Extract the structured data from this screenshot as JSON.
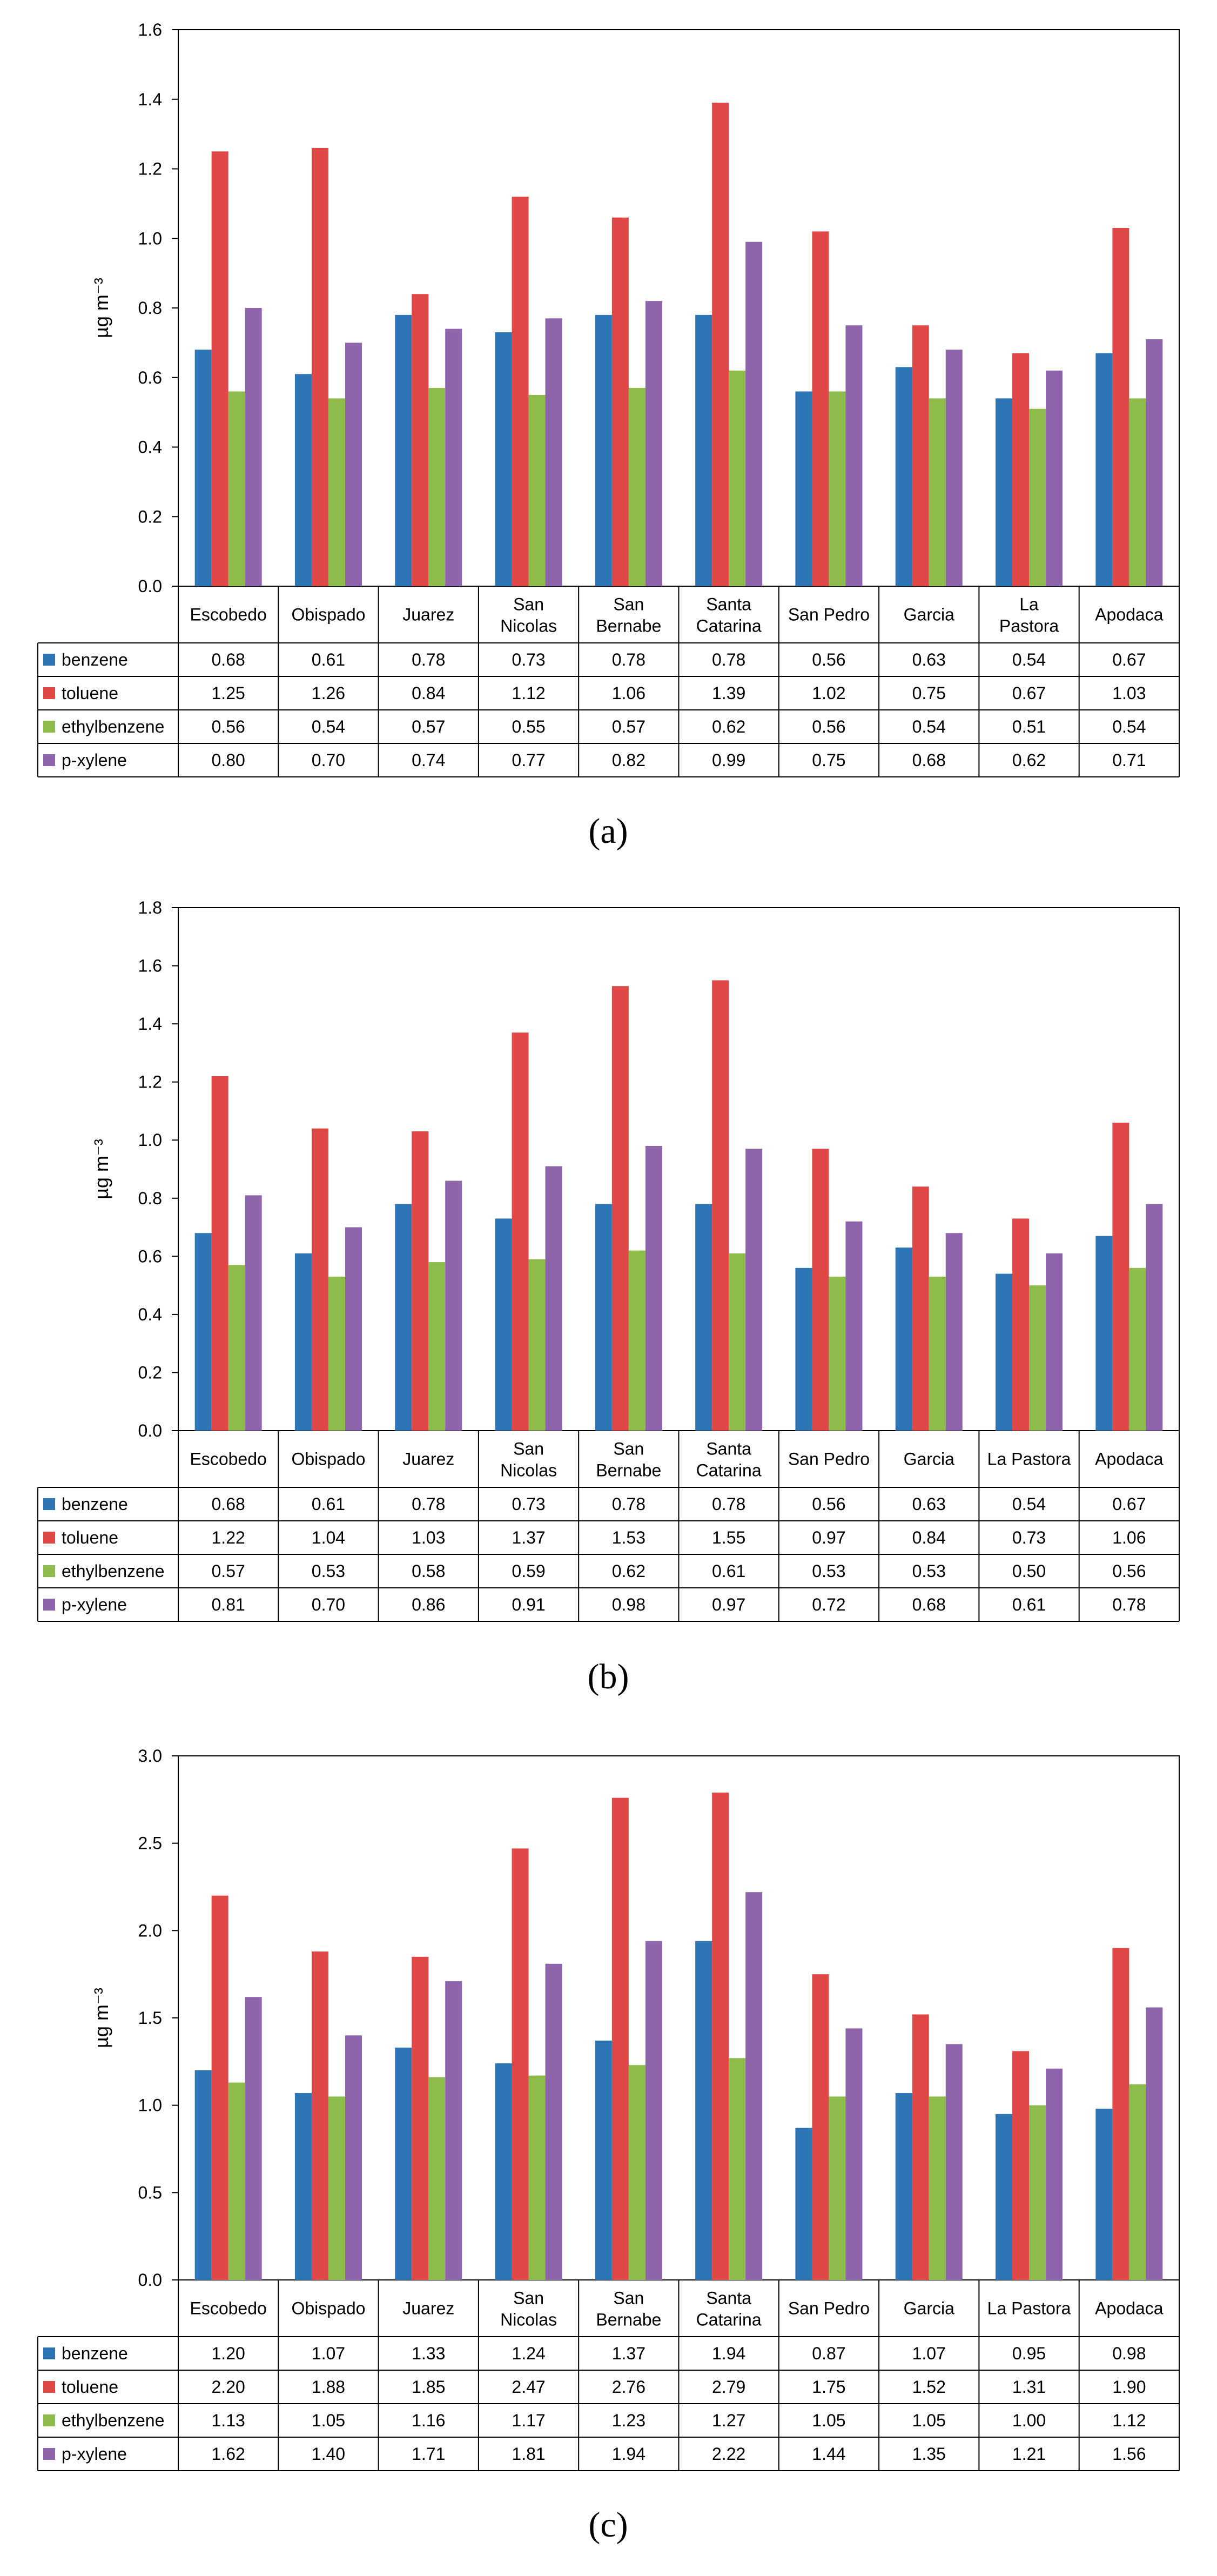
{
  "colors": {
    "benzene": "#2E75B6",
    "toluene": "#E04848",
    "ethylbenzene": "#8DBB4C",
    "p_xylene": "#8E64AA"
  },
  "chart_data": [
    {
      "panel": "(a)",
      "type": "bar",
      "ylabel": "µg m⁻³",
      "ylim": [
        0,
        1.6
      ],
      "ticks": [
        "0.0",
        "0.2",
        "0.4",
        "0.6",
        "0.8",
        "1.0",
        "1.2",
        "1.4",
        "1.6"
      ],
      "categories": [
        "Escobedo",
        "Obispado",
        "Juarez",
        "San\nNicolas",
        "San\nBernabe",
        "Santa\nCatarina",
        "San Pedro",
        "Garcia",
        "La\nPastora",
        "Apodaca"
      ],
      "series": [
        {
          "name": "benzene",
          "key": "benzene",
          "values": [
            0.68,
            0.61,
            0.78,
            0.73,
            0.78,
            0.78,
            0.56,
            0.63,
            0.54,
            0.67
          ],
          "labels": [
            "0.68",
            "0.61",
            "0.78",
            "0.73",
            "0.78",
            "0.78",
            "0.56",
            "0.63",
            "0.54",
            "0.67"
          ]
        },
        {
          "name": "toluene",
          "key": "toluene",
          "values": [
            1.25,
            1.26,
            0.84,
            1.12,
            1.06,
            1.39,
            1.02,
            0.75,
            0.67,
            1.03
          ],
          "labels": [
            "1.25",
            "1.26",
            "0.84",
            "1.12",
            "1.06",
            "1.39",
            "1.02",
            "0.75",
            "0.67",
            "1.03"
          ]
        },
        {
          "name": "ethylbenzene",
          "key": "ethylbenzene",
          "values": [
            0.56,
            0.54,
            0.57,
            0.55,
            0.57,
            0.62,
            0.56,
            0.54,
            0.51,
            0.54
          ],
          "labels": [
            "0.56",
            "0.54",
            "0.57",
            "0.55",
            "0.57",
            "0.62",
            "0.56",
            "0.54",
            "0.51",
            "0.54"
          ]
        },
        {
          "name": "p-xylene",
          "key": "p_xylene",
          "values": [
            0.8,
            0.7,
            0.74,
            0.77,
            0.82,
            0.99,
            0.75,
            0.68,
            0.62,
            0.71
          ],
          "labels": [
            "0.80",
            "0.70",
            "0.74",
            "0.77",
            "0.82",
            "0.99",
            "0.75",
            "0.68",
            "0.62",
            "0.71"
          ]
        }
      ]
    },
    {
      "panel": "(b)",
      "type": "bar",
      "ylabel": "µg m⁻³",
      "ylim": [
        0,
        1.8
      ],
      "ticks": [
        "0.0",
        "0.2",
        "0.4",
        "0.6",
        "0.8",
        "1.0",
        "1.2",
        "1.4",
        "1.6",
        "1.8"
      ],
      "categories": [
        "Escobedo",
        "Obispado",
        "Juarez",
        "San\nNicolas",
        "San\nBernabe",
        "Santa\nCatarina",
        "San Pedro",
        "Garcia",
        "La Pastora",
        "Apodaca"
      ],
      "series": [
        {
          "name": "benzene",
          "key": "benzene",
          "values": [
            0.68,
            0.61,
            0.78,
            0.73,
            0.78,
            0.78,
            0.56,
            0.63,
            0.54,
            0.67
          ],
          "labels": [
            "0.68",
            "0.61",
            "0.78",
            "0.73",
            "0.78",
            "0.78",
            "0.56",
            "0.63",
            "0.54",
            "0.67"
          ]
        },
        {
          "name": "toluene",
          "key": "toluene",
          "values": [
            1.22,
            1.04,
            1.03,
            1.37,
            1.53,
            1.55,
            0.97,
            0.84,
            0.73,
            1.06
          ],
          "labels": [
            "1.22",
            "1.04",
            "1.03",
            "1.37",
            "1.53",
            "1.55",
            "0.97",
            "0.84",
            "0.73",
            "1.06"
          ]
        },
        {
          "name": "ethylbenzene",
          "key": "ethylbenzene",
          "values": [
            0.57,
            0.53,
            0.58,
            0.59,
            0.62,
            0.61,
            0.53,
            0.53,
            0.5,
            0.56
          ],
          "labels": [
            "0.57",
            "0.53",
            "0.58",
            "0.59",
            "0.62",
            "0.61",
            "0.53",
            "0.53",
            "0.50",
            "0.56"
          ]
        },
        {
          "name": "p-xylene",
          "key": "p_xylene",
          "values": [
            0.81,
            0.7,
            0.86,
            0.91,
            0.98,
            0.97,
            0.72,
            0.68,
            0.61,
            0.78
          ],
          "labels": [
            "0.81",
            "0.70",
            "0.86",
            "0.91",
            "0.98",
            "0.97",
            "0.72",
            "0.68",
            "0.61",
            "0.78"
          ]
        }
      ]
    },
    {
      "panel": "(c)",
      "type": "bar",
      "ylabel": "µg m⁻³",
      "ylim": [
        0,
        3.0
      ],
      "ticks": [
        "0.0",
        "0.5",
        "1.0",
        "1.5",
        "2.0",
        "2.5",
        "3.0"
      ],
      "categories": [
        "Escobedo",
        "Obispado",
        "Juarez",
        "San\nNicolas",
        "San\nBernabe",
        "Santa\nCatarina",
        "San Pedro",
        "Garcia",
        "La Pastora",
        "Apodaca"
      ],
      "series": [
        {
          "name": "benzene",
          "key": "benzene",
          "values": [
            1.2,
            1.07,
            1.33,
            1.24,
            1.37,
            1.94,
            0.87,
            1.07,
            0.95,
            0.98
          ],
          "labels": [
            "1.20",
            "1.07",
            "1.33",
            "1.24",
            "1.37",
            "1.94",
            "0.87",
            "1.07",
            "0.95",
            "0.98"
          ]
        },
        {
          "name": "toluene",
          "key": "toluene",
          "values": [
            2.2,
            1.88,
            1.85,
            2.47,
            2.76,
            2.79,
            1.75,
            1.52,
            1.31,
            1.9
          ],
          "labels": [
            "2.20",
            "1.88",
            "1.85",
            "2.47",
            "2.76",
            "2.79",
            "1.75",
            "1.52",
            "1.31",
            "1.90"
          ]
        },
        {
          "name": "ethylbenzene",
          "key": "ethylbenzene",
          "values": [
            1.13,
            1.05,
            1.16,
            1.17,
            1.23,
            1.27,
            1.05,
            1.05,
            1.0,
            1.12
          ],
          "labels": [
            "1.13",
            "1.05",
            "1.16",
            "1.17",
            "1.23",
            "1.27",
            "1.05",
            "1.05",
            "1.00",
            "1.12"
          ]
        },
        {
          "name": "p-xylene",
          "key": "p_xylene",
          "values": [
            1.62,
            1.4,
            1.71,
            1.81,
            1.94,
            2.22,
            1.44,
            1.35,
            1.21,
            1.56
          ],
          "labels": [
            "1.62",
            "1.40",
            "1.71",
            "1.81",
            "1.94",
            "2.22",
            "1.44",
            "1.35",
            "1.21",
            "1.56"
          ]
        }
      ]
    }
  ]
}
